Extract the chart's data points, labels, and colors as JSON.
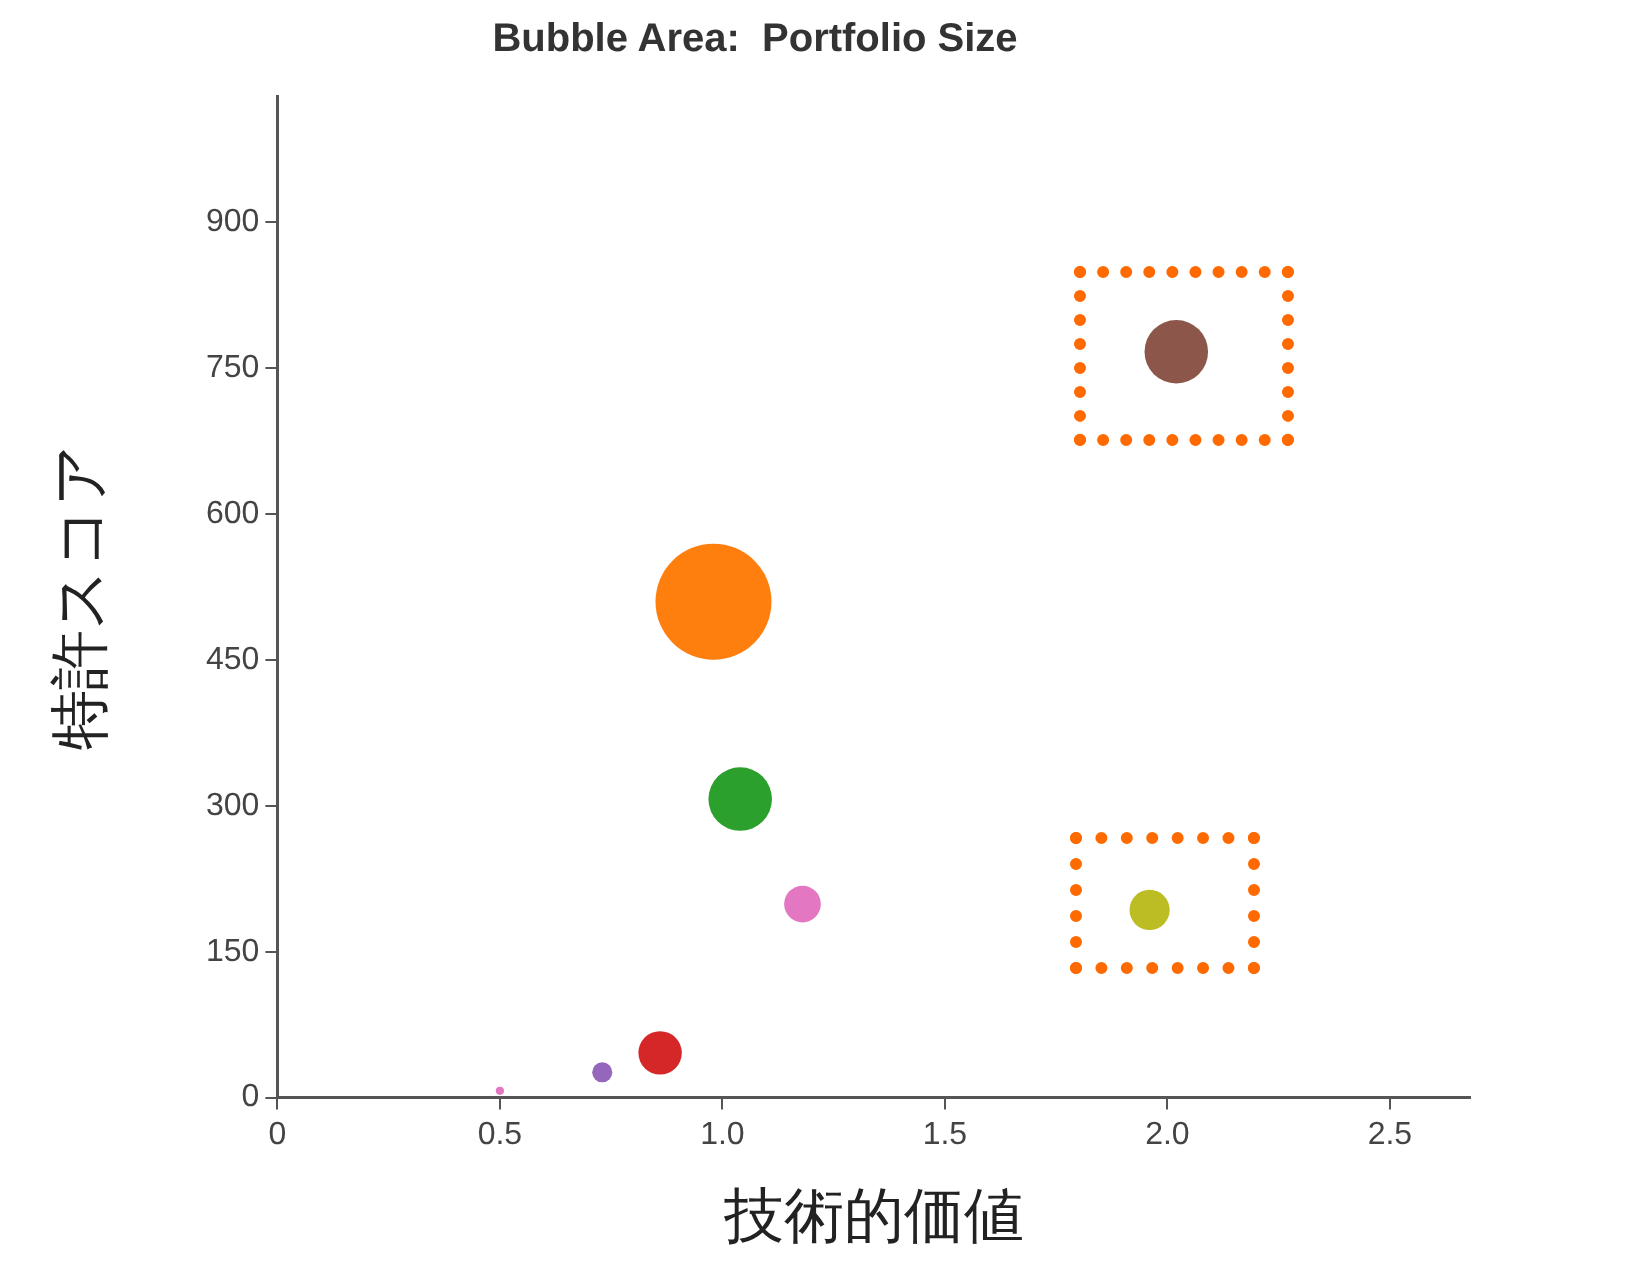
{
  "chart_data": {
    "type": "bubble",
    "title": "Bubble Area:  Portfolio Size",
    "xlabel": "技術的価値",
    "ylabel": "特許スコア",
    "x": [
      0.5,
      0.73,
      0.86,
      0.98,
      1.04,
      1.18,
      1.96,
      2.02
    ],
    "values": [
      7,
      26,
      46,
      510,
      307,
      199,
      193,
      767
    ],
    "sizes": [
      0.005,
      0.03,
      0.14,
      1,
      0.3,
      0.1,
      0.12,
      0.3
    ],
    "colors": [
      "#e377c2",
      "#9467bd",
      "#d62728",
      "#ff7f0e",
      "#2ca02c",
      "#e377c2",
      "#bcbd22",
      "#8c564b"
    ],
    "xlim": [
      0,
      2.68
    ],
    "ylim": [
      0,
      1030
    ],
    "xticks": [
      0,
      {
        "value": 0.5,
        "label": "0.5"
      },
      {
        "value": 1,
        "label": "1.0"
      },
      {
        "value": 1.5,
        "label": "1.5"
      },
      {
        "value": 2,
        "label": "2.0"
      },
      {
        "value": 2.5,
        "label": "2.5"
      }
    ],
    "yticks": [
      0,
      150,
      300,
      450,
      600,
      750,
      900
    ],
    "grid": false,
    "legend": false
  }
}
